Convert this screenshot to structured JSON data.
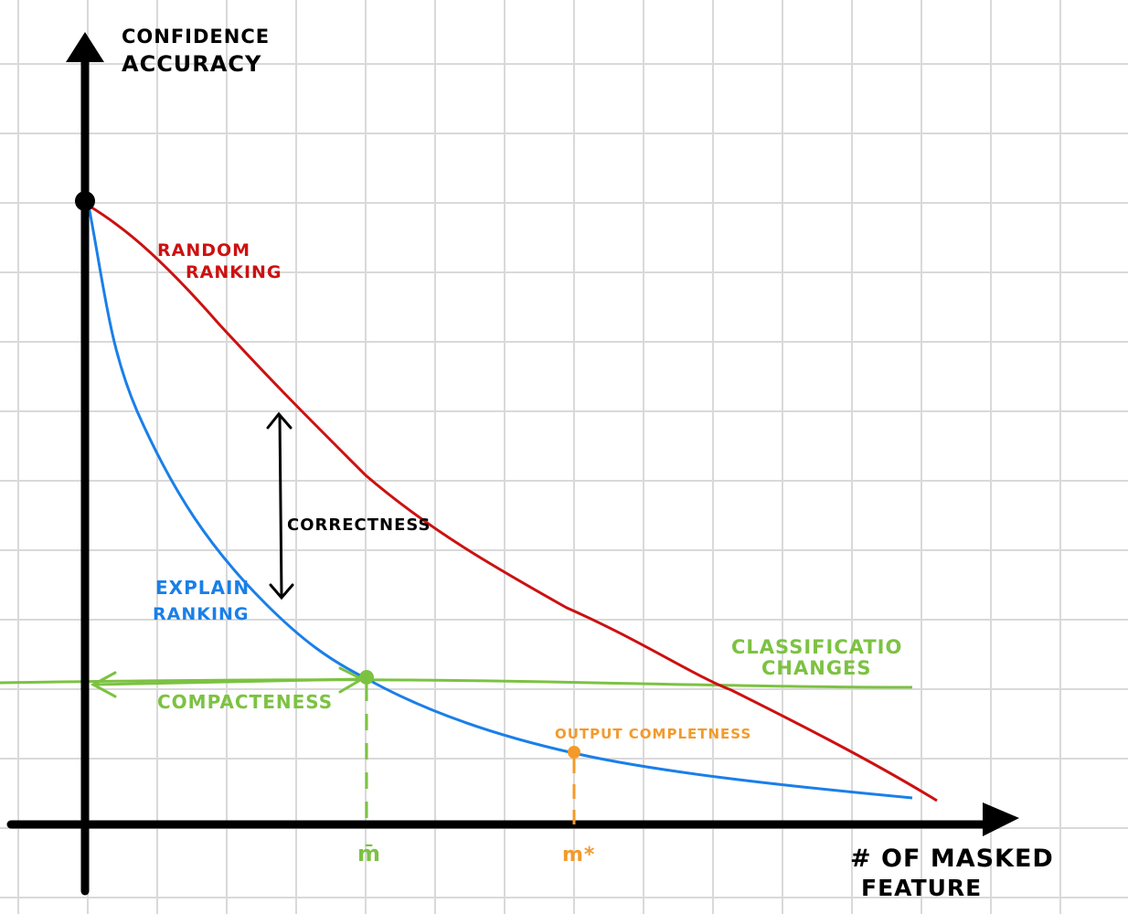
{
  "axes": {
    "y_label_line1": "CONFIDENCE",
    "y_label_line2": "ACCURACY",
    "x_label_line1": "# OF MASKED",
    "x_label_line2": "FEATURE"
  },
  "curves": {
    "random": {
      "label_line1": "RANDOM",
      "label_line2": "RANKING",
      "color": "#cc1111"
    },
    "explain": {
      "label_line1": "EXPLAIN",
      "label_line2": "RANKING",
      "color": "#1a7fe8"
    }
  },
  "threshold": {
    "label_line1": "CLASSIFICATIO",
    "label_line2": "CHANGES",
    "color": "#7cc242"
  },
  "annotations": {
    "correctness": "CORRECTNESS",
    "compactness": "COMPACTENESS",
    "output_completeness": "OUTPUT COMPLETNESS"
  },
  "ticks": {
    "m_bar": "m̄",
    "m_star": "m*"
  },
  "colors": {
    "axis": "#000000",
    "grid": "#d9d9d9",
    "orange": "#f39a2b",
    "green": "#7cc242"
  }
}
